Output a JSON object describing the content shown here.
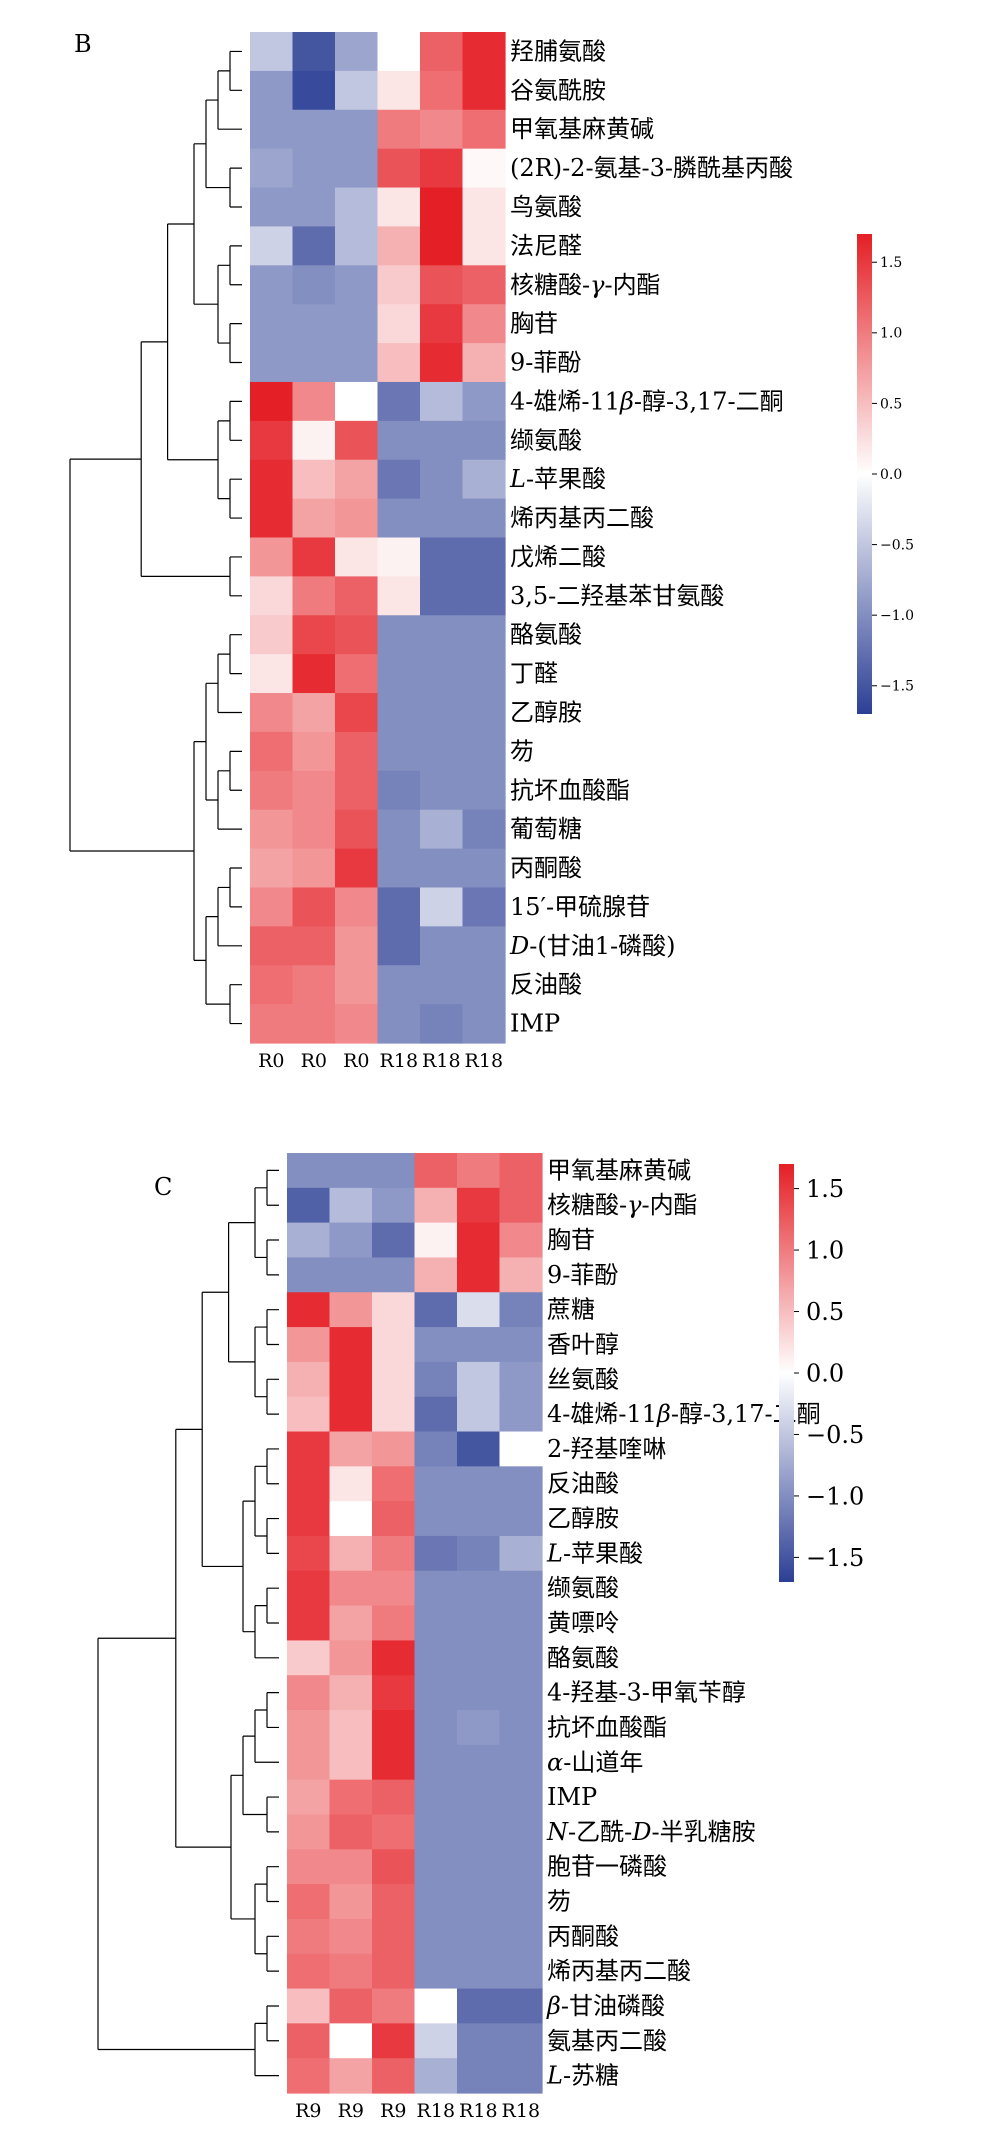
{
  "panels": [
    {
      "panel_label": "B",
      "chart_data": {
        "type": "heatmap",
        "columns": [
          "R0",
          "R0",
          "R0",
          "R18",
          "R18",
          "R18"
        ],
        "rows": [
          "羟脯氨酸",
          "谷氨酰胺",
          "甲氧基麻黄碱",
          "(2R)-2-氨基-3-膦酰基丙酸",
          "鸟氨酸",
          "法尼醛",
          "核糖酸-γ-内酯",
          "胸苷",
          "9-菲酚",
          "4-雄烯-11β-醇-3,17-二酮",
          "缬氨酸",
          "L-苹果酸",
          "烯丙基丙二酸",
          "戊烯二酸",
          "3,5-二羟基苯甘氨酸",
          "酪氨酸",
          "丁醛",
          "乙醇胺",
          "芴",
          "抗坏血酸酯",
          "葡萄糖",
          "丙酮酸",
          "15′-甲硫腺苷",
          "D-(甘油1-磷酸)",
          "反油酸",
          "IMP"
        ],
        "values": [
          [
            -0.5,
            -1.5,
            -0.8,
            0.0,
            1.2,
            1.6
          ],
          [
            -0.9,
            -1.6,
            -0.5,
            0.2,
            1.1,
            1.6
          ],
          [
            -0.9,
            -0.9,
            -0.9,
            1.0,
            0.9,
            1.1
          ],
          [
            -0.8,
            -0.9,
            -0.9,
            1.3,
            1.5,
            0.05
          ],
          [
            -0.9,
            -0.9,
            -0.6,
            0.2,
            1.7,
            0.2
          ],
          [
            -0.4,
            -1.3,
            -0.6,
            0.6,
            1.7,
            0.2
          ],
          [
            -0.9,
            -1.0,
            -0.9,
            0.4,
            1.3,
            1.2
          ],
          [
            -0.9,
            -0.9,
            -0.9,
            0.3,
            1.5,
            0.9
          ],
          [
            -0.9,
            -0.9,
            -0.9,
            0.5,
            1.6,
            0.6
          ],
          [
            1.7,
            0.9,
            0.0,
            -1.2,
            -0.6,
            -0.9
          ],
          [
            1.5,
            0.1,
            1.3,
            -1.0,
            -1.0,
            -1.0
          ],
          [
            1.6,
            0.5,
            0.7,
            -1.2,
            -1.0,
            -0.7
          ],
          [
            1.6,
            0.7,
            0.8,
            -1.0,
            -1.0,
            -1.0
          ],
          [
            0.8,
            1.5,
            0.2,
            0.1,
            -1.3,
            -1.3
          ],
          [
            0.3,
            1.0,
            1.2,
            0.2,
            -1.3,
            -1.3
          ],
          [
            0.4,
            1.4,
            1.3,
            -1.0,
            -1.0,
            -1.0
          ],
          [
            0.2,
            1.6,
            1.1,
            -1.0,
            -1.0,
            -1.0
          ],
          [
            0.9,
            0.7,
            1.4,
            -1.0,
            -1.0,
            -1.0
          ],
          [
            1.1,
            0.8,
            1.2,
            -1.0,
            -1.0,
            -1.0
          ],
          [
            1.0,
            0.9,
            1.2,
            -1.1,
            -1.0,
            -1.0
          ],
          [
            0.8,
            0.9,
            1.3,
            -1.0,
            -0.7,
            -1.1
          ],
          [
            0.7,
            0.8,
            1.5,
            -1.0,
            -1.0,
            -1.0
          ],
          [
            0.9,
            1.3,
            0.9,
            -1.3,
            -0.4,
            -1.2
          ],
          [
            1.2,
            1.2,
            0.8,
            -1.3,
            -1.0,
            -1.0
          ],
          [
            1.1,
            1.0,
            0.8,
            -1.0,
            -1.0,
            -1.0
          ],
          [
            1.0,
            1.0,
            0.9,
            -1.0,
            -1.1,
            -1.0
          ]
        ],
        "colorbar_ticks": [
          1.5,
          1.0,
          0.5,
          0.0,
          -0.5,
          -1.0,
          -1.5
        ],
        "colorbar_tick_labels": [
          "1.5",
          "1.0",
          "0.5",
          "0.0",
          "−0.5",
          "−1.0",
          "−1.5"
        ],
        "color_range": [
          -1.7,
          1.7
        ]
      }
    },
    {
      "panel_label": "C",
      "chart_data": {
        "type": "heatmap",
        "columns": [
          "R9",
          "R9",
          "R9",
          "R18",
          "R18",
          "R18"
        ],
        "rows": [
          "甲氧基麻黄碱",
          "核糖酸-γ-内酯",
          "胸苷",
          "9-菲酚",
          "蔗糖",
          "香叶醇",
          "丝氨酸",
          "4-雄烯-11β-醇-3,17-二酮",
          "2-羟基喹啉",
          "反油酸",
          "乙醇胺",
          "L-苹果酸",
          "缬氨酸",
          "黄嘌呤",
          "酪氨酸",
          "4-羟基-3-甲氧苄醇",
          "抗坏血酸酯",
          "α-山道年",
          "IMP",
          "N-乙酰-D-半乳糖胺",
          "胞苷一磷酸",
          "芴",
          "丙酮酸",
          "烯丙基丙二酸",
          "β-甘油磷酸",
          "氨基丙二酸",
          "L-苏糖"
        ],
        "values": [
          [
            -1.0,
            -1.0,
            -1.0,
            1.2,
            1.0,
            1.2
          ],
          [
            -1.4,
            -0.6,
            -0.9,
            0.6,
            1.5,
            1.2
          ],
          [
            -0.7,
            -0.9,
            -1.3,
            0.1,
            1.6,
            0.9
          ],
          [
            -1.0,
            -1.0,
            -1.0,
            0.6,
            1.6,
            0.6
          ],
          [
            1.6,
            0.8,
            0.3,
            -1.3,
            -0.3,
            -1.1
          ],
          [
            0.8,
            1.6,
            0.3,
            -1.0,
            -1.0,
            -1.0
          ],
          [
            0.6,
            1.6,
            0.3,
            -1.1,
            -0.5,
            -0.9
          ],
          [
            0.5,
            1.6,
            0.3,
            -1.3,
            -0.5,
            -0.9
          ],
          [
            1.5,
            0.7,
            0.8,
            -1.1,
            -1.5,
            0.0
          ],
          [
            1.5,
            0.2,
            1.1,
            -1.0,
            -1.0,
            -1.0
          ],
          [
            1.5,
            0.0,
            1.2,
            -1.0,
            -1.0,
            -1.0
          ],
          [
            1.4,
            0.6,
            1.0,
            -1.2,
            -1.1,
            -0.7
          ],
          [
            1.5,
            0.9,
            0.9,
            -1.0,
            -1.0,
            -1.0
          ],
          [
            1.5,
            0.7,
            1.0,
            -1.0,
            -1.0,
            -1.0
          ],
          [
            0.4,
            0.8,
            1.6,
            -1.0,
            -1.0,
            -1.0
          ],
          [
            0.9,
            0.6,
            1.5,
            -1.0,
            -1.0,
            -1.0
          ],
          [
            0.8,
            0.5,
            1.6,
            -1.0,
            -0.9,
            -1.0
          ],
          [
            0.8,
            0.5,
            1.6,
            -1.0,
            -1.0,
            -1.0
          ],
          [
            0.7,
            1.1,
            1.2,
            -1.0,
            -1.0,
            -1.0
          ],
          [
            0.8,
            1.2,
            1.1,
            -1.0,
            -1.0,
            -1.0
          ],
          [
            0.9,
            0.9,
            1.3,
            -1.0,
            -1.0,
            -1.0
          ],
          [
            1.1,
            0.8,
            1.2,
            -1.0,
            -1.0,
            -1.0
          ],
          [
            1.0,
            0.9,
            1.2,
            -1.0,
            -1.0,
            -1.0
          ],
          [
            1.1,
            1.0,
            1.2,
            -1.0,
            -1.0,
            -1.0
          ],
          [
            0.5,
            1.2,
            1.0,
            0.0,
            -1.3,
            -1.3
          ],
          [
            1.2,
            0.0,
            1.5,
            -0.4,
            -1.1,
            -1.1
          ],
          [
            1.1,
            0.7,
            1.2,
            -0.7,
            -1.1,
            -1.1
          ]
        ],
        "colorbar_ticks": [
          1.5,
          1.0,
          0.5,
          0.0,
          -0.5,
          -1.0,
          -1.5
        ],
        "colorbar_tick_labels": [
          "1.5",
          "1.0",
          "0.5",
          "0.0",
          "−0.5",
          "−1.0",
          "−1.5"
        ],
        "color_range": [
          -1.7,
          1.7
        ]
      }
    }
  ],
  "colors": {
    "high": "#e41f25",
    "mid": "#ffffff",
    "low": "#2c3f95",
    "line": "#000000"
  }
}
